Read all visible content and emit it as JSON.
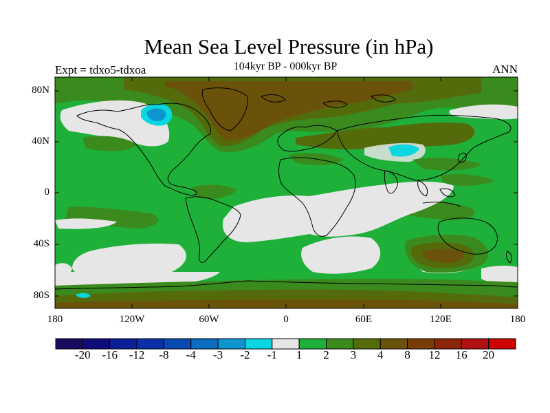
{
  "title": "Mean Sea Level Pressure (in hPa)",
  "subtitle_left": "Expt = tdxo5-tdxoa",
  "subtitle_center": "104kyr BP - 000kyr BP",
  "subtitle_right": "ANN",
  "y_ticks": [
    "80N",
    "40N",
    "0",
    "40S",
    "80S"
  ],
  "x_ticks": [
    "180",
    "120W",
    "60W",
    "0",
    "60E",
    "120E",
    "180"
  ],
  "colorbar": {
    "colors": [
      "#1a0a5e",
      "#100b7a",
      "#0b1f96",
      "#0a2fa8",
      "#0a49b0",
      "#0b6cc0",
      "#0c95cf",
      "#0ad6e0",
      "#e6e6e6",
      "#1fb03a",
      "#3a8a1e",
      "#546b0c",
      "#6a520a",
      "#7a3c07",
      "#8c2407",
      "#b01010",
      "#cc0000"
    ],
    "labels": [
      "-20",
      "-16",
      "-12",
      "-8",
      "-4",
      "-3",
      "-2",
      "-1",
      "1",
      "2",
      "3",
      "4",
      "8",
      "12",
      "16",
      "20"
    ]
  },
  "map_colors": {
    "grey": "#e6e6e6",
    "green": "#1fb03a",
    "olive": "#3a8a1e",
    "dark_olive": "#546b0c",
    "brown": "#6a520a",
    "cyan": "#0ad6e0",
    "light_cyan": "#8ee8f0"
  }
}
